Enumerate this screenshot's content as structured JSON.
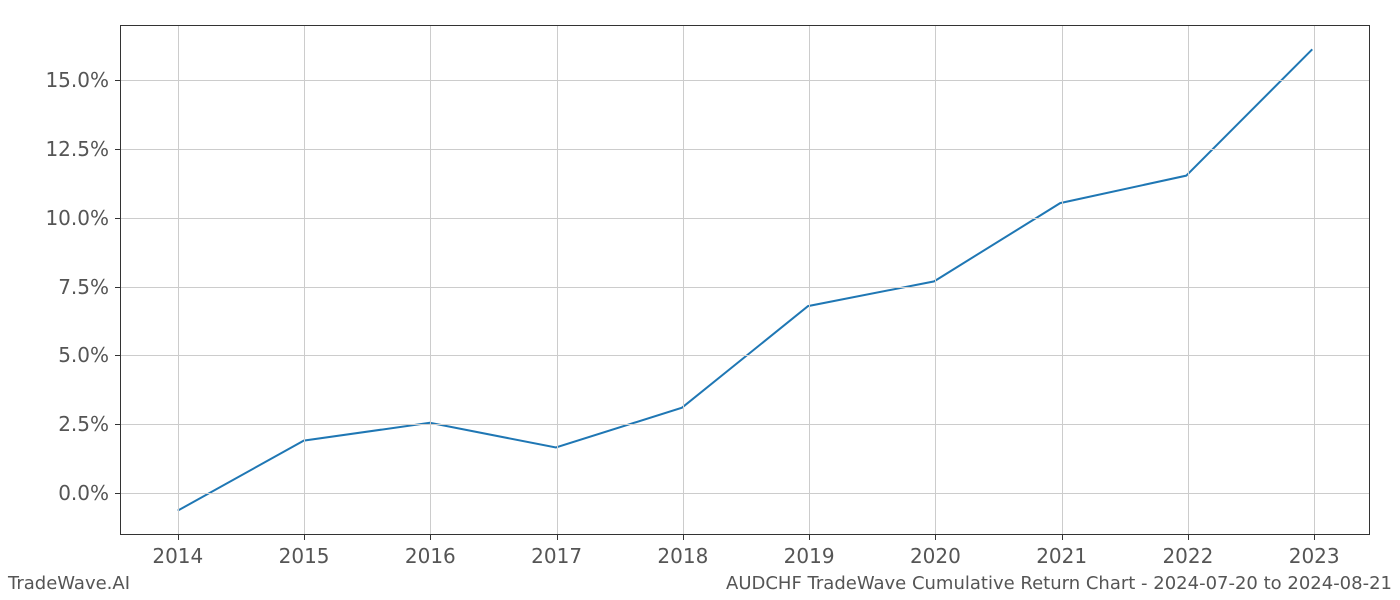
{
  "chart": {
    "type": "line",
    "x_values": [
      2014,
      2015,
      2016,
      2017,
      2018,
      2019,
      2020,
      2021,
      2022,
      2023
    ],
    "y_values": [
      -0.7,
      1.85,
      2.5,
      1.6,
      3.05,
      6.75,
      7.65,
      10.5,
      11.5,
      16.1
    ],
    "x_labels": [
      "2014",
      "2015",
      "2016",
      "2017",
      "2018",
      "2019",
      "2020",
      "2021",
      "2022",
      "2023"
    ],
    "y_ticks": [
      0.0,
      2.5,
      5.0,
      7.5,
      10.0,
      12.5,
      15.0
    ],
    "y_tick_labels": [
      "0.0%",
      "2.5%",
      "5.0%",
      "7.5%",
      "10.0%",
      "12.5%",
      "15.0%"
    ],
    "xlim": [
      2013.55,
      2023.45
    ],
    "ylim": [
      -1.55,
      16.95
    ],
    "line_color": "#1f77b4",
    "line_width": 2.0,
    "grid_color": "#cccccc",
    "border_color": "#333333",
    "background_color": "#ffffff",
    "tick_label_color": "#555555",
    "tick_label_fontsize": 20
  },
  "footer": {
    "left": "TradeWave.AI",
    "right": "AUDCHF TradeWave Cumulative Return Chart - 2024-07-20 to 2024-08-21",
    "fontsize": 18,
    "color": "#555555"
  }
}
